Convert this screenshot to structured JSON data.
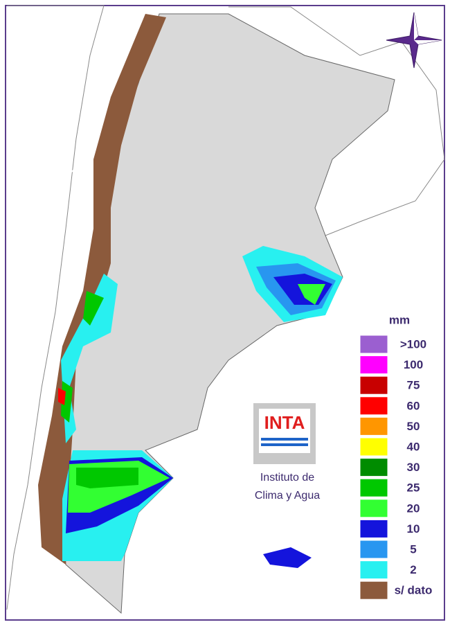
{
  "legend": {
    "title": "mm",
    "items": [
      {
        "label": ">100",
        "color": "#9b5fd0"
      },
      {
        "label": "100",
        "color": "#ff00ff"
      },
      {
        "label": "75",
        "color": "#c80000"
      },
      {
        "label": "60",
        "color": "#ff0000"
      },
      {
        "label": "50",
        "color": "#ff9600"
      },
      {
        "label": "40",
        "color": "#ffff00"
      },
      {
        "label": "30",
        "color": "#008c00"
      },
      {
        "label": "25",
        "color": "#00c800"
      },
      {
        "label": "20",
        "color": "#32ff32"
      },
      {
        "label": "10",
        "color": "#1414dc"
      },
      {
        "label": "5",
        "color": "#2896f0"
      },
      {
        "label": "2",
        "color": "#28f0f0"
      },
      {
        "label": "s/ dato",
        "color": "#8c5a3c"
      }
    ]
  },
  "logo": {
    "text": "INTA",
    "caption": [
      "Instituto de",
      "Clima y Agua"
    ]
  }
}
